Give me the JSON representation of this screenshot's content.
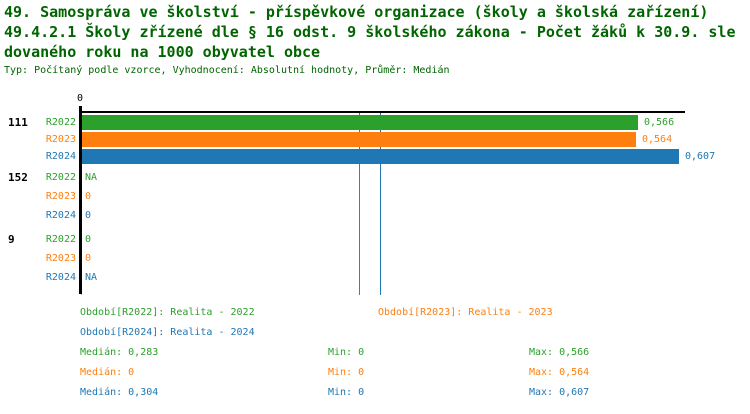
{
  "title": {
    "line1": "49. Samospráva ve školství - příspěvkové organizace (školy a školská zařízení)",
    "line2": "49.4.2.1 Školy zřízené dle § 16 odst. 9 školského zákona - Počet žáků k 30.9. sle",
    "line3": "dovaného roku na 1000 obyvatel obce",
    "meta": "Typ: Počítaný podle vzorce, Vyhodnocení: Absolutní hodnoty, Průměr: Medián"
  },
  "colors": {
    "series_r2022": "#2ca02c",
    "series_r2023": "#ff7f0e",
    "series_r2024": "#1f77b4",
    "title_text": "#006400",
    "axis": "#000000"
  },
  "axis": {
    "zero_label": "0"
  },
  "chart_data": {
    "type": "bar",
    "orientation": "horizontal",
    "xlim": [
      0,
      0.615
    ],
    "grid": false,
    "series_names": [
      "R2022",
      "R2023",
      "R2024"
    ],
    "groups": [
      {
        "label": "111",
        "rows": [
          {
            "series": "R2022",
            "value": 0.566,
            "display": "0,566"
          },
          {
            "series": "R2023",
            "value": 0.564,
            "display": "0,564"
          },
          {
            "series": "R2024",
            "value": 0.607,
            "display": "0,607"
          }
        ]
      },
      {
        "label": "152",
        "rows": [
          {
            "series": "R2022",
            "value": null,
            "display": "NA"
          },
          {
            "series": "R2023",
            "value": 0,
            "display": "0"
          },
          {
            "series": "R2024",
            "value": 0,
            "display": "0"
          }
        ]
      },
      {
        "label": "9",
        "rows": [
          {
            "series": "R2022",
            "value": 0,
            "display": "0"
          },
          {
            "series": "R2023",
            "value": 0,
            "display": "0"
          },
          {
            "series": "R2024",
            "value": null,
            "display": "NA"
          }
        ]
      }
    ],
    "median_lines": [
      {
        "series": "R2022",
        "value": 0.283
      },
      {
        "series": "R2023",
        "value": 0
      },
      {
        "series": "R2024",
        "value": 0.304
      }
    ]
  },
  "legend": {
    "r2022": "Období[R2022]: Realita - 2022",
    "r2023": "Období[R2023]: Realita - 2023",
    "r2024": "Období[R2024]: Realita - 2024"
  },
  "stats": {
    "rows": [
      {
        "series": "R2022",
        "median": "Medián: 0,283",
        "min": "Min: 0",
        "max": "Max: 0,566"
      },
      {
        "series": "R2023",
        "median": "Medián: 0",
        "min": "Min: 0",
        "max": "Max: 0,564"
      },
      {
        "series": "R2024",
        "median": "Medián: 0,304",
        "min": "Min: 0",
        "max": "Max: 0,607"
      }
    ]
  }
}
